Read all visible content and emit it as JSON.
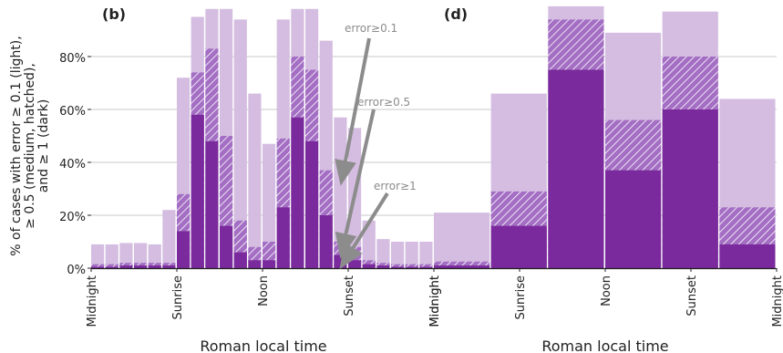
{
  "colors": {
    "light": "#d4bde0",
    "medium": "#a36ec3",
    "dark": "#7a2a9c",
    "grid": "#c8c8c8",
    "axis": "#222222",
    "annotation": "#8c8c8c"
  },
  "y_ticks": [
    "0%",
    "20%",
    "40%",
    "60%",
    "80%"
  ],
  "y_label": [
    "% of cases with error ≥ 0.1 (light),",
    "≥ 0.5 (medium, hatched),",
    "and ≥ 1 (dark)"
  ],
  "annotations": [
    "error≥0.1",
    "error≥0.5",
    "error≥1"
  ],
  "chart_data": [
    {
      "type": "bar",
      "panel_label": "(b)",
      "xlabel": "Roman local time",
      "ylabel": "% of cases with error ≥ 0.1 (light), ≥ 0.5 (medium, hatched), and ≥ 1 (dark)",
      "ylim": [
        0,
        100
      ],
      "x_ticks": [
        "Midnight",
        "Sunrise",
        "Noon",
        "Sunset",
        "Midnight"
      ],
      "grid": true,
      "series": [
        {
          "name": "error≥0.1",
          "values": [
            9,
            9,
            9.5,
            9.5,
            9,
            22,
            72,
            95,
            98,
            98,
            94,
            66,
            47,
            94,
            98,
            98,
            86,
            57,
            53,
            18,
            11,
            10,
            10,
            10
          ]
        },
        {
          "name": "error≥0.5",
          "values": [
            1.5,
            1.5,
            2,
            2,
            2,
            2,
            28,
            74,
            83,
            50,
            18,
            8,
            10,
            49,
            80,
            75,
            37,
            10,
            8,
            3,
            2,
            1.5,
            1.5,
            1.5
          ]
        },
        {
          "name": "error≥1",
          "values": [
            0.5,
            0.5,
            1,
            1,
            1,
            1,
            14,
            58,
            48,
            16,
            6,
            3,
            3,
            23,
            57,
            48,
            20,
            5,
            3,
            1.5,
            1,
            0.5,
            0.5,
            0.5
          ]
        }
      ]
    },
    {
      "type": "bar",
      "panel_label": "(d)",
      "xlabel": "Roman local time",
      "ylim": [
        0,
        100
      ],
      "x_ticks": [
        "Midnight",
        "Sunrise",
        "Noon",
        "Sunset",
        "Midnight"
      ],
      "grid": true,
      "series": [
        {
          "name": "error≥0.1",
          "values": [
            21,
            66,
            99,
            89,
            97,
            64
          ]
        },
        {
          "name": "error≥0.5",
          "values": [
            2.5,
            29,
            94,
            56,
            80,
            23
          ]
        },
        {
          "name": "error≥1",
          "values": [
            1,
            16,
            75,
            37,
            60,
            9
          ]
        }
      ]
    }
  ]
}
